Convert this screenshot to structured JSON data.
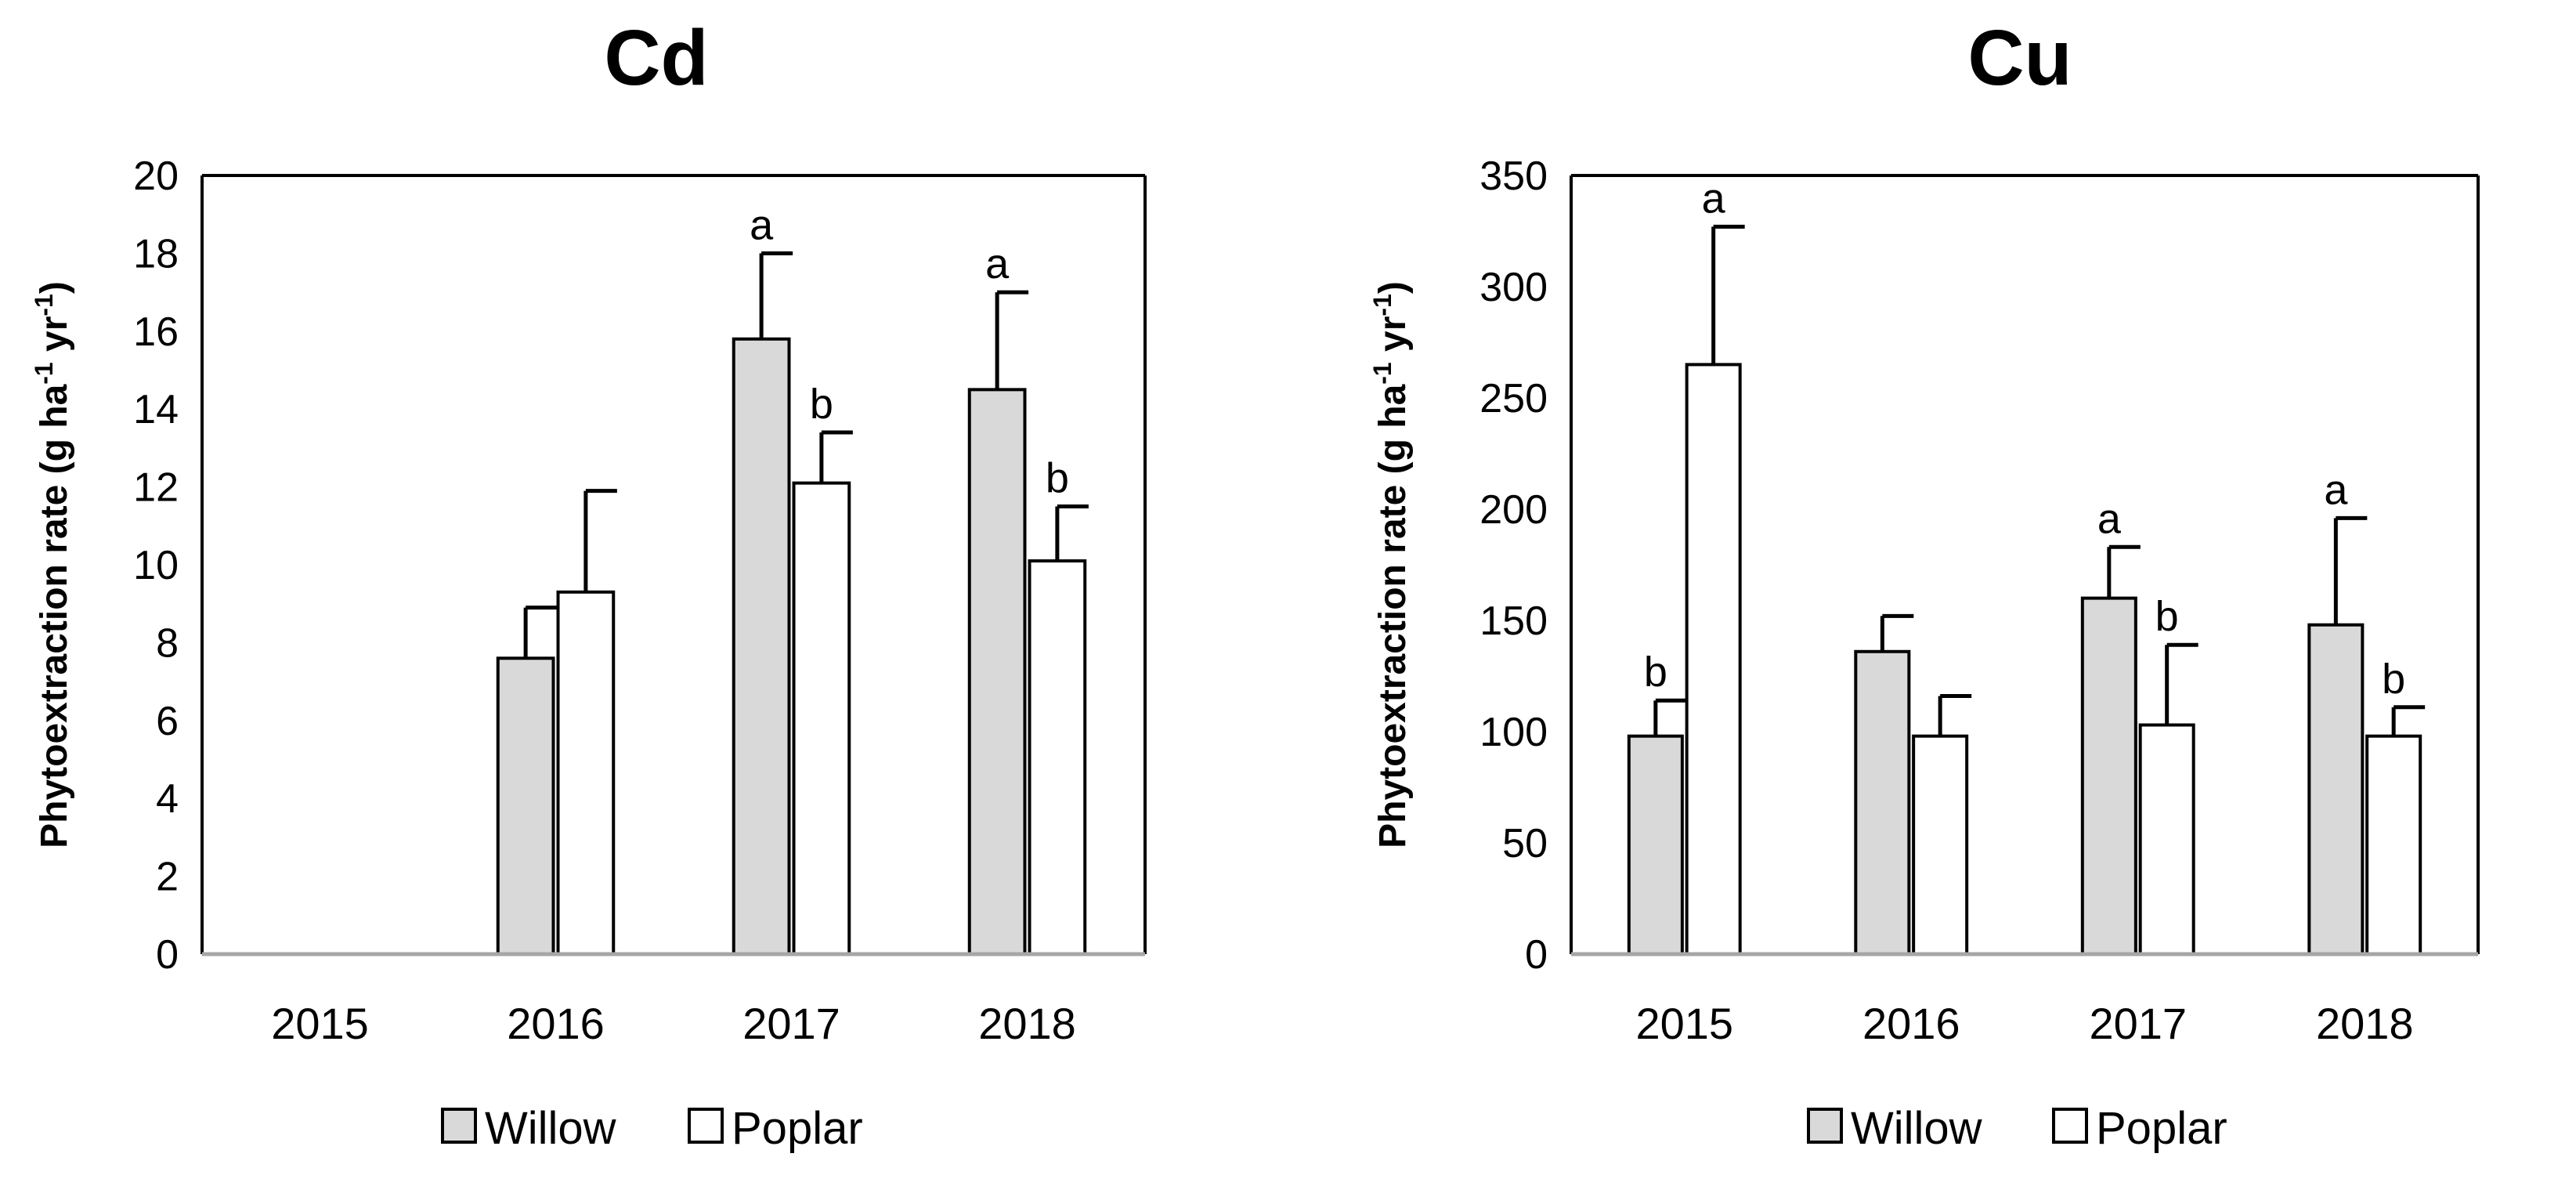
{
  "chart_data": [
    {
      "type": "bar",
      "title": "Cd",
      "ylabel": "Phytoextraction rate (g ha-1 yr-1)",
      "ylabel_parts": {
        "pre": "Phytoextraction rate (g ha",
        "sup1": "-1",
        "mid": " yr",
        "sup2": "-1",
        "post": ")"
      },
      "xlabel": "",
      "categories": [
        "2015",
        "2016",
        "2017",
        "2018"
      ],
      "ylim": [
        0,
        20
      ],
      "yticks": [
        0,
        2,
        4,
        6,
        8,
        10,
        12,
        14,
        16,
        18,
        20
      ],
      "series": [
        {
          "name": "Willow",
          "color": "#d9d9d9",
          "values": [
            0,
            7.6,
            15.8,
            14.5
          ],
          "errors": [
            0,
            1.3,
            2.2,
            2.5
          ],
          "annotations": [
            "",
            "",
            "a",
            "a"
          ]
        },
        {
          "name": "Poplar",
          "color": "#ffffff",
          "values": [
            0,
            9.3,
            12.1,
            10.1
          ],
          "errors": [
            0,
            2.6,
            1.3,
            1.4
          ],
          "annotations": [
            "",
            "",
            "b",
            "b"
          ]
        }
      ],
      "legend": "bottom-center",
      "grid": false
    },
    {
      "type": "bar",
      "title": "Cu",
      "ylabel": "Phytoextraction rate (g ha-1 yr-1)",
      "ylabel_parts": {
        "pre": "Phytoextraction rate (g ha",
        "sup1": "-1",
        "mid": " yr",
        "sup2": "-1",
        "post": ")"
      },
      "xlabel": "",
      "categories": [
        "2015",
        "2016",
        "2017",
        "2018"
      ],
      "ylim": [
        0,
        350
      ],
      "yticks": [
        0,
        50,
        100,
        150,
        200,
        250,
        300,
        350
      ],
      "series": [
        {
          "name": "Willow",
          "color": "#d9d9d9",
          "values": [
            98,
            136,
            160,
            148
          ],
          "errors": [
            16,
            16,
            23,
            48
          ],
          "annotations": [
            "b",
            "",
            "a",
            "a"
          ]
        },
        {
          "name": "Poplar",
          "color": "#ffffff",
          "values": [
            265,
            98,
            103,
            98
          ],
          "errors": [
            62,
            18,
            36,
            13
          ],
          "annotations": [
            "a",
            "",
            "b",
            "b"
          ]
        }
      ],
      "legend": "bottom-center",
      "grid": false
    }
  ]
}
